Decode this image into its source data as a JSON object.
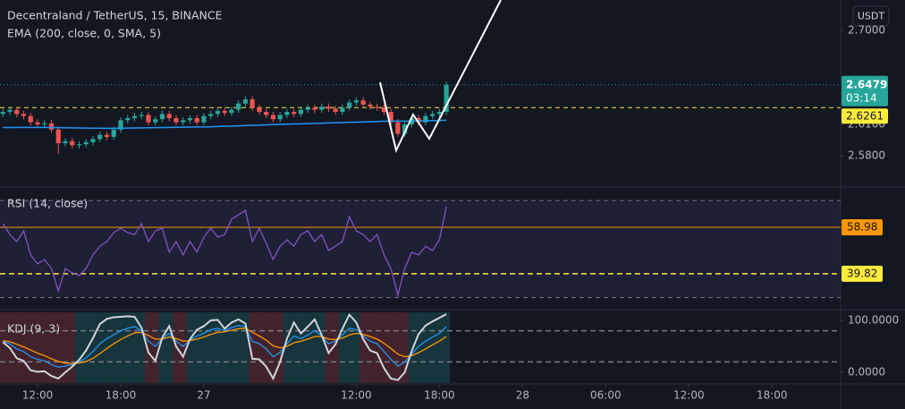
{
  "chart_data": [
    {
      "type": "candlestick",
      "title": "Decentraland / TetherUS, 15, BINANCE",
      "currency": "USDT",
      "up_color": "#26a69a",
      "down_color": "#ef5350",
      "open": [
        2.62,
        2.622,
        2.624,
        2.62,
        2.618,
        2.612,
        2.61,
        2.611,
        2.605,
        2.592,
        2.594,
        2.59,
        2.591,
        2.593,
        2.596,
        2.6,
        2.598,
        2.605,
        2.614,
        2.616,
        2.618,
        2.619,
        2.612,
        2.615,
        2.62,
        2.616,
        2.612,
        2.614,
        2.616,
        2.612,
        2.618,
        2.62,
        2.623,
        2.621,
        2.624,
        2.63,
        2.634,
        2.626,
        2.622,
        2.619,
        2.615,
        2.619,
        2.622,
        2.62,
        2.624,
        2.626,
        2.624,
        2.627,
        2.625,
        2.622,
        2.626,
        2.631,
        2.633,
        2.629,
        2.627,
        2.626,
        2.622,
        2.612,
        2.601,
        2.61,
        2.616,
        2.612,
        2.618,
        2.62,
        2.622
      ],
      "high": [
        2.625,
        2.627,
        2.627,
        2.623,
        2.621,
        2.615,
        2.614,
        2.614,
        2.608,
        2.597,
        2.597,
        2.594,
        2.596,
        2.599,
        2.603,
        2.603,
        2.608,
        2.617,
        2.619,
        2.621,
        2.622,
        2.622,
        2.618,
        2.623,
        2.623,
        2.619,
        2.617,
        2.619,
        2.619,
        2.621,
        2.623,
        2.626,
        2.626,
        2.627,
        2.633,
        2.637,
        2.637,
        2.629,
        2.625,
        2.622,
        2.622,
        2.625,
        2.625,
        2.627,
        2.629,
        2.629,
        2.63,
        2.63,
        2.628,
        2.629,
        2.634,
        2.636,
        2.636,
        2.632,
        2.63,
        2.629,
        2.625,
        2.615,
        2.613,
        2.619,
        2.619,
        2.621,
        2.623,
        2.625,
        2.651
      ],
      "low": [
        2.617,
        2.619,
        2.617,
        2.615,
        2.609,
        2.607,
        2.607,
        2.602,
        2.582,
        2.589,
        2.587,
        2.587,
        2.588,
        2.59,
        2.593,
        2.595,
        2.595,
        2.602,
        2.611,
        2.613,
        2.615,
        2.609,
        2.609,
        2.612,
        2.613,
        2.609,
        2.609,
        2.611,
        2.609,
        2.609,
        2.615,
        2.617,
        2.618,
        2.618,
        2.621,
        2.627,
        2.623,
        2.619,
        2.616,
        2.612,
        2.612,
        2.616,
        2.617,
        2.617,
        2.621,
        2.621,
        2.621,
        2.622,
        2.619,
        2.619,
        2.623,
        2.628,
        2.626,
        2.624,
        2.623,
        2.619,
        2.609,
        2.598,
        2.598,
        2.607,
        2.609,
        2.609,
        2.615,
        2.617,
        2.619
      ],
      "close": [
        2.622,
        2.624,
        2.62,
        2.618,
        2.612,
        2.61,
        2.611,
        2.605,
        2.592,
        2.594,
        2.59,
        2.591,
        2.593,
        2.596,
        2.6,
        2.598,
        2.605,
        2.614,
        2.616,
        2.618,
        2.619,
        2.612,
        2.615,
        2.62,
        2.616,
        2.612,
        2.614,
        2.616,
        2.612,
        2.618,
        2.62,
        2.623,
        2.621,
        2.624,
        2.63,
        2.634,
        2.626,
        2.622,
        2.619,
        2.615,
        2.619,
        2.622,
        2.62,
        2.624,
        2.626,
        2.624,
        2.627,
        2.625,
        2.622,
        2.626,
        2.631,
        2.633,
        2.629,
        2.627,
        2.626,
        2.622,
        2.612,
        2.601,
        2.61,
        2.616,
        2.612,
        2.618,
        2.62,
        2.622,
        2.6479
      ],
      "series": [
        {
          "name": "EMA (200, close, 0, SMA, 5)",
          "color": "#2196f3",
          "values": [
            2.607,
            2.607,
            2.6071,
            2.6071,
            2.6071,
            2.6071,
            2.6071,
            2.607,
            2.6069,
            2.6068,
            2.6067,
            2.6066,
            2.6065,
            2.6064,
            2.6064,
            2.6063,
            2.6063,
            2.6064,
            2.6065,
            2.6066,
            2.6067,
            2.6068,
            2.6069,
            2.607,
            2.6071,
            2.6072,
            2.6073,
            2.6074,
            2.6075,
            2.6076,
            2.6078,
            2.608,
            2.6082,
            2.6084,
            2.6086,
            2.6089,
            2.6092,
            2.6094,
            2.6096,
            2.6098,
            2.61,
            2.6102,
            2.6104,
            2.6106,
            2.6108,
            2.611,
            2.6112,
            2.6114,
            2.6116,
            2.6118,
            2.612,
            2.6122,
            2.6124,
            2.6126,
            2.6128,
            2.613,
            2.6131,
            2.6131,
            2.6131,
            2.6132,
            2.6133,
            2.6134,
            2.6136,
            2.6138,
            2.6141
          ]
        }
      ],
      "last_price": 2.6479,
      "countdown": "03:14",
      "last_color": "#26a69a",
      "price_line": 2.6261,
      "price_line_color": "#ffeb3b",
      "xlim": [
        -0.42,
        120.9
      ],
      "ylim": [
        2.5509,
        2.7291
      ],
      "yticks": [
        {
          "value": 2.58,
          "label": "2.5800"
        },
        {
          "value": 2.61,
          "label": "2.6100"
        },
        {
          "value": 2.7,
          "label": "2.7000"
        }
      ]
    },
    {
      "type": "line",
      "series": [
        {
          "name": "RSI (14, close)",
          "color": "#7e57c2",
          "values": [
            60.5,
            56.0,
            53.1,
            57.5,
            47.6,
            43.9,
            45.7,
            42.0,
            32.8,
            42.0,
            40.2,
            39.1,
            42.0,
            47.6,
            51.2,
            53.1,
            56.8,
            58.6,
            56.8,
            56.0,
            60.5,
            53.1,
            57.5,
            58.6,
            48.7,
            53.1,
            47.6,
            53.1,
            48.7,
            54.9,
            58.6,
            54.9,
            56.0,
            62.3,
            64.1,
            66.0,
            53.1,
            58.6,
            52.4,
            45.7,
            51.2,
            53.8,
            51.2,
            56.0,
            57.5,
            53.1,
            56.0,
            49.4,
            51.2,
            53.1,
            63.4,
            57.5,
            56.0,
            53.1,
            56.0,
            47.6,
            42.0,
            31.0,
            42.0,
            48.7,
            47.6,
            51.2,
            49.4,
            53.8,
            67.5
          ]
        }
      ],
      "band": [
        30,
        70
      ],
      "levels": [
        {
          "value": 58.98,
          "color": "#ff9800",
          "style": "solid"
        },
        {
          "value": 39.82,
          "color": "#ffeb3b",
          "style": "dashed"
        }
      ],
      "xlim": [
        -0.42,
        120.9
      ],
      "ylim": [
        25.4,
        75.2
      ]
    },
    {
      "type": "line",
      "title": "KDJ (9, 3)",
      "shading": true,
      "series": [
        {
          "color": "#2196f3",
          "values": [
            60,
            55,
            45,
            40,
            30,
            25,
            22,
            15,
            10,
            12,
            15,
            20,
            28,
            40,
            55,
            65,
            72,
            80,
            85,
            88,
            80,
            60,
            50,
            65,
            75,
            60,
            50,
            62,
            70,
            75,
            82,
            85,
            80,
            86,
            90,
            88,
            60,
            55,
            45,
            30,
            38,
            55,
            70,
            65,
            72,
            80,
            70,
            55,
            60,
            72,
            85,
            82,
            70,
            60,
            55,
            40,
            25,
            12,
            20,
            35,
            50,
            60,
            68,
            75,
            88
          ]
        },
        {
          "color": "#ff9800",
          "values": [
            61,
            59,
            54,
            49,
            43,
            37,
            32,
            26,
            21,
            18,
            17,
            18,
            21,
            27,
            36,
            46,
            55,
            63,
            70,
            76,
            77,
            71,
            64,
            64,
            68,
            65,
            60,
            61,
            64,
            68,
            73,
            77,
            78,
            81,
            84,
            85,
            77,
            70,
            62,
            51,
            47,
            50,
            57,
            60,
            64,
            69,
            69,
            64,
            63,
            66,
            72,
            75,
            73,
            69,
            64,
            56,
            46,
            35,
            30,
            32,
            38,
            45,
            53,
            60,
            69
          ]
        },
        {
          "color": "#d1d4dc",
          "values": [
            58,
            47,
            27,
            22,
            4,
            1,
            2,
            -7,
            -12,
            0,
            11,
            24,
            42,
            66,
            93,
            103,
            106,
            107,
            108,
            107,
            86,
            38,
            22,
            67,
            89,
            50,
            30,
            64,
            82,
            89,
            100,
            101,
            84,
            96,
            102,
            94,
            26,
            25,
            11,
            -12,
            20,
            65,
            96,
            75,
            88,
            102,
            72,
            37,
            54,
            84,
            111,
            96,
            64,
            42,
            37,
            8,
            -12,
            -15,
            0,
            41,
            74,
            90,
            98,
            105,
            112
          ]
        }
      ],
      "levels": [
        {
          "value": 80,
          "color": "#787b86",
          "style": "dashed"
        },
        {
          "value": 20,
          "color": "#787b86",
          "style": "dashed"
        }
      ],
      "xlim": [
        -0.42,
        120.9
      ],
      "ylim": [
        -20.7,
        119
      ],
      "yticks": [
        {
          "value": 0,
          "label": "0.0000"
        },
        {
          "value": 100,
          "label": "100.0000"
        }
      ],
      "xticks": [
        {
          "value": 5,
          "label": "12:00"
        },
        {
          "value": 17,
          "label": "18:00"
        },
        {
          "value": 29,
          "label": "27"
        },
        {
          "value": 51,
          "label": "12:00"
        },
        {
          "value": 63,
          "label": "18:00"
        },
        {
          "value": 75,
          "label": "28"
        },
        {
          "value": 87,
          "label": "06:00"
        },
        {
          "value": 99,
          "label": "12:00"
        },
        {
          "value": 111,
          "label": "18:00"
        }
      ]
    }
  ]
}
